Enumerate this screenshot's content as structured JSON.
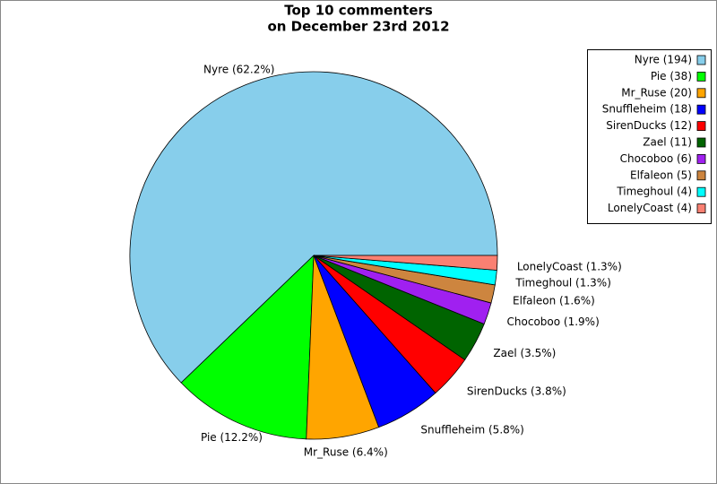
{
  "chart_data": {
    "type": "pie",
    "title": [
      "Top 10 commenters",
      "on December 23rd 2012"
    ],
    "categories": [
      "Nyre",
      "Pie",
      "Mr_Ruse",
      "Snuffleheim",
      "SirenDucks",
      "Zael",
      "Chocoboo",
      "Elfaleon",
      "Timeghoul",
      "LonelyCoast"
    ],
    "values": [
      194,
      38,
      20,
      18,
      12,
      11,
      6,
      5,
      4,
      4
    ],
    "legend_labels": [
      "Nyre (194)",
      "Pie (38)",
      "Mr_Ruse (20)",
      "Snuffleheim (18)",
      "SirenDucks (12)",
      "Zael (11)",
      "Chocoboo (6)",
      "Elfaleon (5)",
      "Timeghoul (4)",
      "LonelyCoast (4)"
    ],
    "percentages": [
      62.2,
      12.2,
      6.4,
      5.8,
      3.8,
      3.5,
      1.9,
      1.6,
      1.3,
      1.3
    ],
    "percentage_labels": [
      "Nyre (62.2%)",
      "Pie (12.2%)",
      "Mr_Ruse (6.4%)",
      "Snuffleheim (5.8%)",
      "SirenDucks (3.8%)",
      "Zael (3.5%)",
      "Chocoboo (1.9%)",
      "Elfaleon (1.6%)",
      "Timeghoul (1.3%)",
      "LonelyCoast (1.3%)"
    ],
    "colors": [
      "#87ceeb",
      "#00ff00",
      "#ffa500",
      "#0000ff",
      "#ff0000",
      "#006400",
      "#a020f0",
      "#cd853f",
      "#00ffff",
      "#fa8072"
    ],
    "legend": "top-right"
  }
}
